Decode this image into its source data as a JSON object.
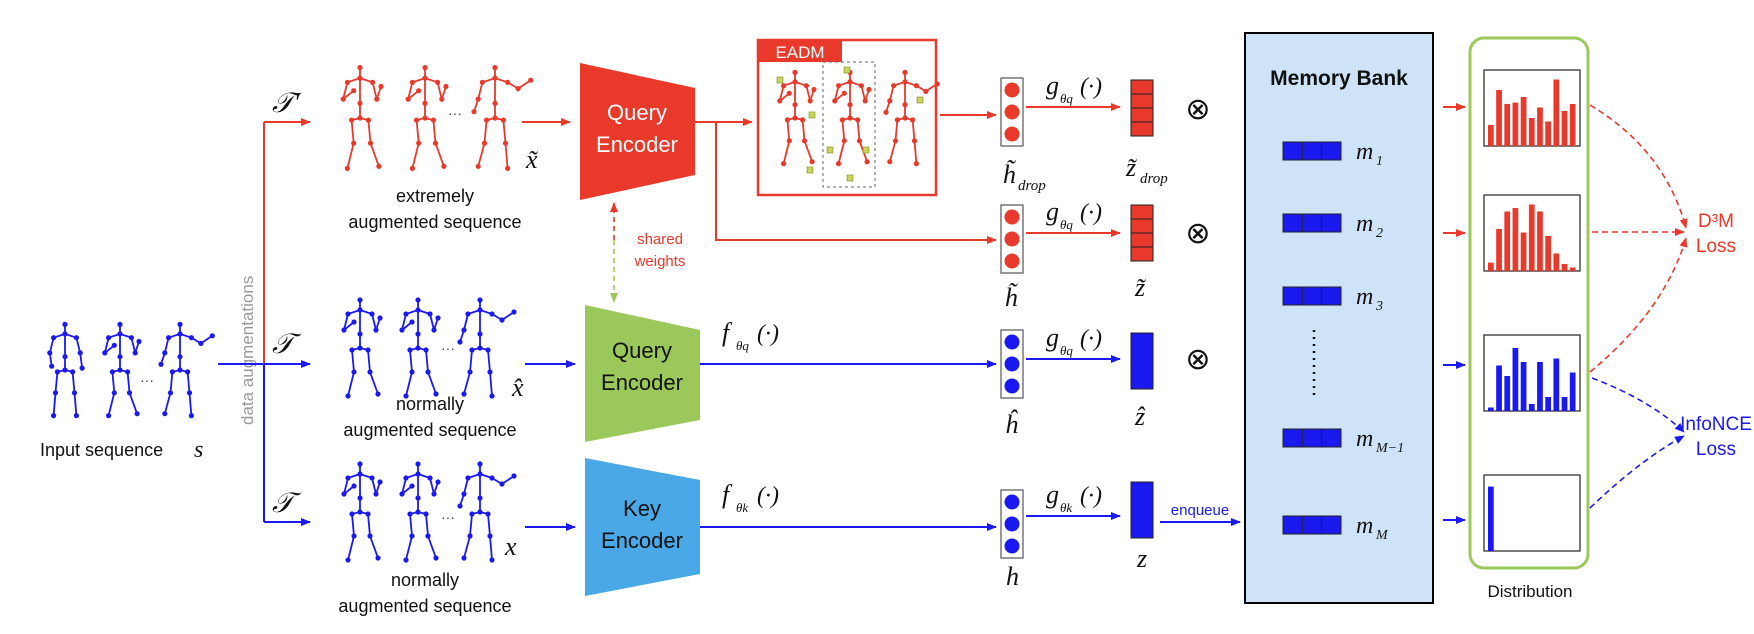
{
  "input": {
    "label": "Input sequence",
    "var": "s",
    "aug_label": "data augmentations"
  },
  "transforms": {
    "extreme": "𝒯′",
    "normal": "𝒯"
  },
  "sequences": {
    "extreme": {
      "caption_line1": "extremely",
      "caption_line2": "augmented sequence",
      "var": "x̃"
    },
    "normal1": {
      "caption_line1": "normally",
      "caption_line2": "augmented sequence",
      "var": "x̂"
    },
    "normal2": {
      "caption_line1": "normally",
      "caption_line2": "augmented sequence",
      "var": "x"
    },
    "dots": "···"
  },
  "encoders": {
    "query_red": {
      "line1": "Query",
      "line2": "Encoder",
      "color": "#e8392a"
    },
    "query_green": {
      "line1": "Query",
      "line2": "Encoder",
      "color": "#9bc85a"
    },
    "key": {
      "line1": "Key",
      "line2": "Encoder",
      "color": "#4aa8e6"
    },
    "shared_line1": "shared",
    "shared_line2": "weights"
  },
  "eadm_label": "EADM",
  "functions": {
    "f_q": {
      "base": "f",
      "sub": "θq",
      "arg": "(·)"
    },
    "f_k": {
      "base": "f",
      "sub": "θk",
      "arg": "(·)"
    },
    "g_q": {
      "base": "g",
      "sub": "θq",
      "arg": "(·)"
    },
    "g_k": {
      "base": "g",
      "sub": "θk",
      "arg": "(·)"
    }
  },
  "features": {
    "h_drop": {
      "base": "h̃",
      "sub": "drop"
    },
    "h_tilde": {
      "base": "h̃"
    },
    "h_hat": {
      "base": "ĥ"
    },
    "h": {
      "base": "h"
    }
  },
  "embeddings": {
    "z_drop": {
      "base": "z̃",
      "sub": "drop"
    },
    "z_tilde": {
      "base": "z̃"
    },
    "z_hat": {
      "base": "ẑ"
    },
    "z": {
      "base": "z"
    }
  },
  "otimes": "⊗",
  "enqueue": "enqueue",
  "memory_bank": {
    "title": "Memory Bank",
    "items": [
      {
        "base": "m",
        "sub": "1"
      },
      {
        "base": "m",
        "sub": "2"
      },
      {
        "base": "m",
        "sub": "3"
      },
      {
        "base": "m",
        "sub": "M−1"
      },
      {
        "base": "m",
        "sub": "M"
      }
    ],
    "color": "#1a1af0",
    "bg": "#cfe3f8"
  },
  "distribution": {
    "label": "Distribution",
    "histograms": [
      {
        "color": "#e8392a",
        "values": [
          0.3,
          0.8,
          0.6,
          0.62,
          0.7,
          0.4,
          0.55,
          0.35,
          0.95,
          0.5,
          0.6
        ]
      },
      {
        "color": "#e8392a",
        "values": [
          0.12,
          0.6,
          0.85,
          0.9,
          0.55,
          0.95,
          0.85,
          0.5,
          0.25,
          0.1,
          0.05
        ]
      },
      {
        "color": "#1a1af0",
        "values": [
          0.05,
          0.65,
          0.5,
          0.9,
          0.7,
          0.1,
          0.7,
          0.2,
          0.75,
          0.2,
          0.55
        ]
      },
      {
        "color": "#1a1af0",
        "values": [
          0.92
        ]
      }
    ]
  },
  "losses": {
    "d3m_line1": "D³M",
    "d3m_line2": "Loss",
    "infonce_line1": "InfoNCE",
    "infonce_line2": "Loss"
  }
}
